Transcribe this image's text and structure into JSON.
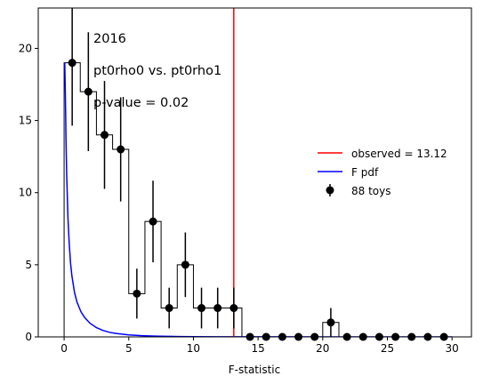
{
  "chart_data": {
    "type": "histogram",
    "xlabel": "F-statistic",
    "ylabel": "",
    "xlim": [
      -2,
      31.5
    ],
    "ylim": [
      0,
      22.8
    ],
    "xticks": [
      0,
      5,
      10,
      15,
      20,
      25,
      30
    ],
    "yticks": [
      0,
      5,
      10,
      15,
      20
    ],
    "grid": false,
    "annotations": [
      "2016",
      "pt0rho0 vs. pt0rho1",
      "p-value = 0.02"
    ],
    "legend": {
      "placement": "center-right",
      "entries": [
        {
          "label": "observed = 13.12",
          "color": "#ff0000",
          "kind": "line"
        },
        {
          "label": "F pdf",
          "color": "#0000ff",
          "kind": "line"
        },
        {
          "label": "88 toys",
          "color": "#000000",
          "kind": "errorbar"
        }
      ]
    },
    "bin_edges": [
      0,
      1.25,
      2.5,
      3.75,
      5,
      6.25,
      7.5,
      8.75,
      10,
      11.25,
      12.5,
      13.75,
      15,
      16.25,
      17.5,
      18.75,
      20,
      21.25,
      22.5,
      23.75,
      25,
      26.25,
      27.5,
      28.75,
      30
    ],
    "counts": [
      19,
      17,
      14,
      13,
      3,
      8,
      2,
      5,
      2,
      2,
      2,
      0,
      0,
      0,
      0,
      0,
      1,
      0,
      0,
      0,
      0,
      0,
      0,
      0
    ],
    "toys": {
      "name": "88 toys",
      "x": [
        0.625,
        1.875,
        3.125,
        4.375,
        5.625,
        6.875,
        8.125,
        9.375,
        10.625,
        11.875,
        13.125,
        14.375,
        15.625,
        16.875,
        18.125,
        19.375,
        20.625,
        21.875,
        23.125,
        24.375,
        25.625,
        26.875,
        28.125,
        29.375
      ],
      "y": [
        19,
        17,
        14,
        13,
        3,
        8,
        2,
        5,
        2,
        2,
        2,
        0,
        0,
        0,
        0,
        0,
        1,
        0,
        0,
        0,
        0,
        0,
        0,
        0
      ],
      "yerr": [
        4.36,
        4.12,
        3.74,
        3.61,
        1.73,
        2.83,
        1.41,
        2.24,
        1.41,
        1.41,
        1.41,
        0,
        0,
        0,
        0,
        0,
        1,
        0,
        0,
        0,
        0,
        0,
        0,
        0
      ],
      "color": "#000000"
    },
    "observed": {
      "name": "observed = 13.12",
      "x": 13.12,
      "color": "#ff0000"
    },
    "f_pdf": {
      "name": "F pdf",
      "color": "#0000ff",
      "x": [
        0.05,
        0.1,
        0.15,
        0.2,
        0.3,
        0.4,
        0.5,
        0.6,
        0.8,
        1.0,
        1.3,
        1.6,
        2.0,
        2.5,
        3.0,
        3.5,
        4.0,
        5.0,
        6.0,
        7.0,
        8.0,
        9.0,
        10.0,
        12.0,
        15.0,
        20.0,
        25.0,
        30.0
      ],
      "y": [
        19.0,
        16.6,
        13.5,
        11.2,
        8.2,
        6.4,
        5.1,
        4.25,
        3.1,
        2.4,
        1.75,
        1.33,
        0.95,
        0.64,
        0.45,
        0.32,
        0.24,
        0.14,
        0.085,
        0.055,
        0.037,
        0.025,
        0.018,
        0.009,
        0.004,
        0.001,
        0.0004,
        0.0002
      ]
    }
  }
}
